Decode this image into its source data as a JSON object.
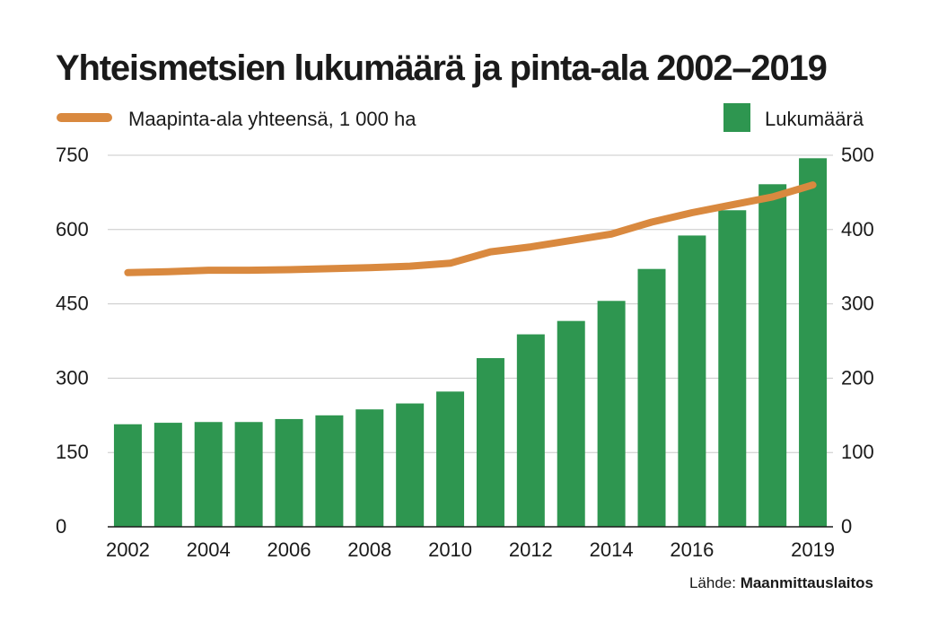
{
  "chart_data": {
    "type": "bar",
    "title": "Yhteismetsien lukumäärä ja pinta-ala 2002–2019",
    "x": [
      2002,
      2003,
      2004,
      2005,
      2006,
      2007,
      2008,
      2009,
      2010,
      2011,
      2012,
      2013,
      2014,
      2015,
      2016,
      2017,
      2018,
      2019
    ],
    "x_tick_labels": [
      "2002",
      "2004",
      "2006",
      "2008",
      "2010",
      "2012",
      "2014",
      "2016",
      "2019"
    ],
    "series": [
      {
        "name": "Lukumäärä",
        "type": "bar",
        "axis": "right",
        "color": "#2e9650",
        "values": [
          138,
          140,
          141,
          141,
          145,
          150,
          158,
          166,
          182,
          227,
          259,
          277,
          304,
          347,
          392,
          426,
          461,
          496
        ]
      },
      {
        "name": "Maapinta-ala yhteensä, 1 000 ha",
        "type": "line",
        "axis": "left",
        "color": "#d9893f",
        "values": [
          513,
          515,
          518,
          518,
          519,
          521,
          523,
          526,
          532,
          555,
          565,
          578,
          591,
          615,
          634,
          650,
          666,
          690
        ]
      }
    ],
    "y_left": {
      "ticks": [
        0,
        150,
        300,
        450,
        600,
        750
      ],
      "range": [
        0,
        750
      ]
    },
    "y_right": {
      "ticks": [
        0,
        100,
        200,
        300,
        400,
        500
      ],
      "range": [
        0,
        500
      ]
    },
    "grid": true,
    "legend": {
      "line_position": "top-left",
      "bar_position": "top-right"
    }
  },
  "source": {
    "label": "Lähde:",
    "name": "Maanmittauslaitos"
  }
}
